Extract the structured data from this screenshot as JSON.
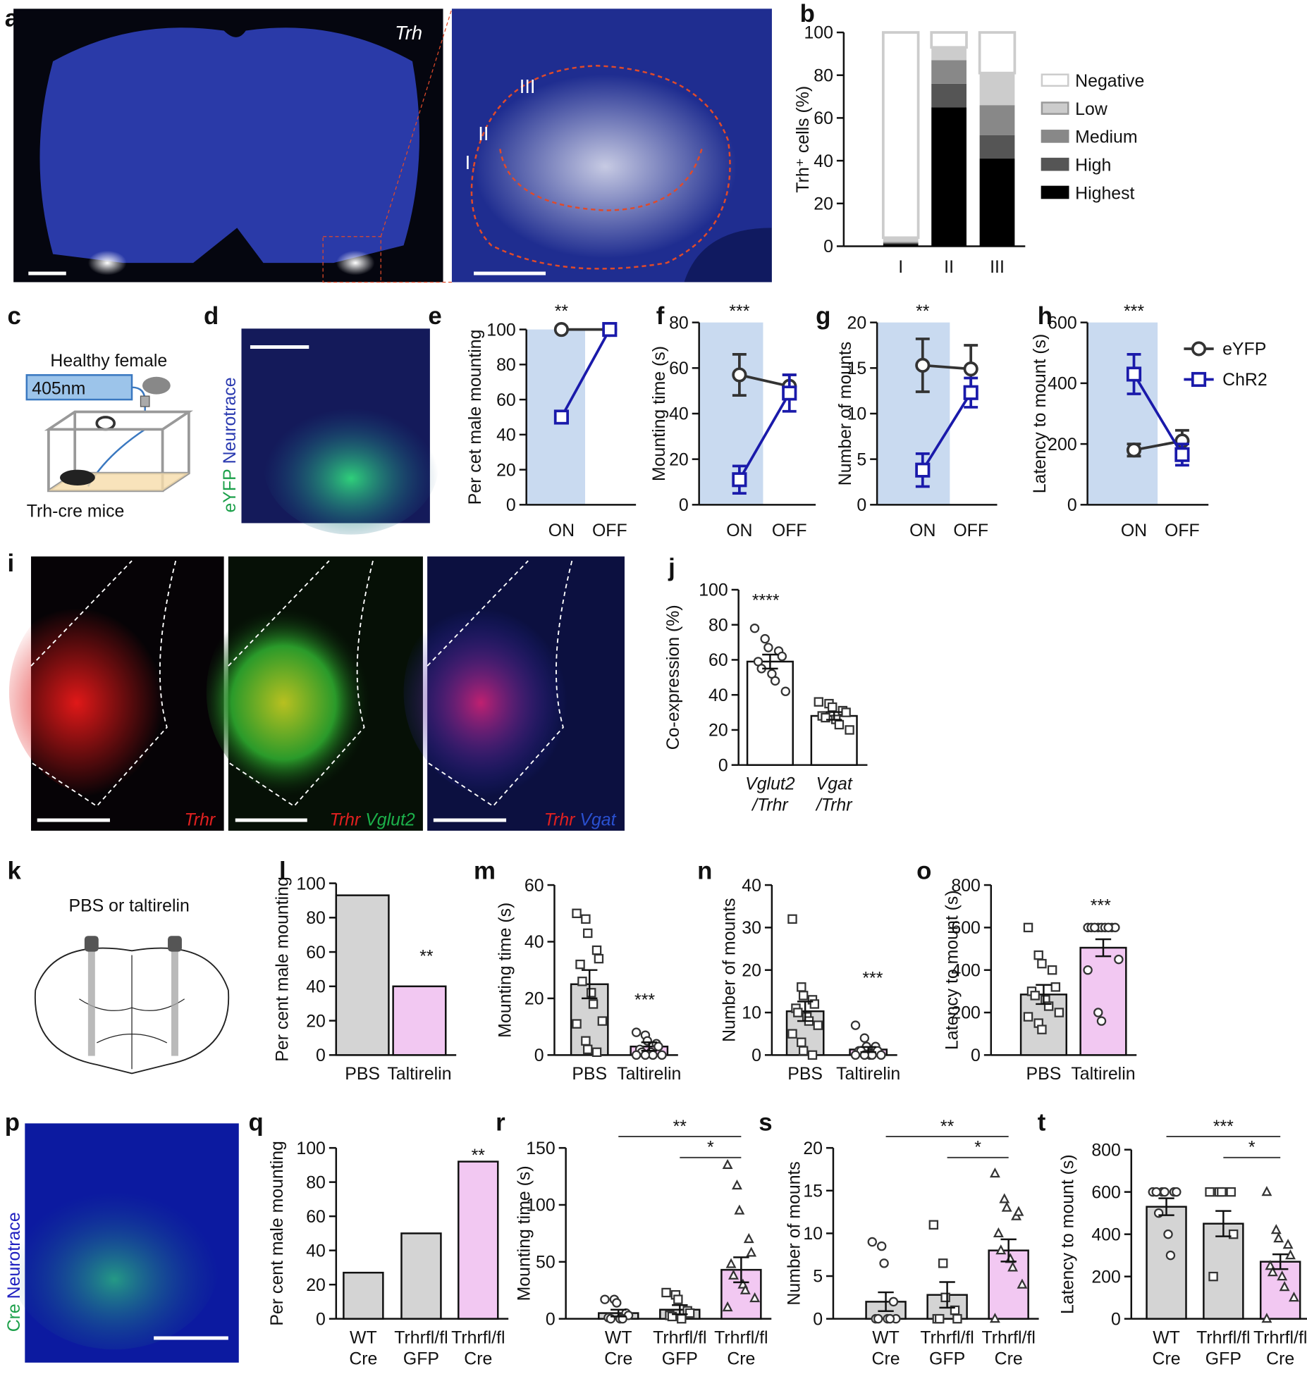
{
  "figures": [
    {
      "panel": "a",
      "label": "Trh",
      "regions": [
        "III",
        "II",
        "I"
      ]
    },
    {
      "panel": "c",
      "texts": [
        "Healthy female",
        "405nm",
        "Trh-cre mice"
      ]
    },
    {
      "panel": "d",
      "stains": [
        "eYFP",
        "Neurotrace"
      ]
    },
    {
      "panel": "i",
      "captions": [
        [
          "Trhr"
        ],
        [
          "Trhr",
          "Vglut2"
        ],
        [
          "Trhr",
          "Vgat"
        ]
      ]
    },
    {
      "panel": "k",
      "text": "PBS or taltirelin"
    },
    {
      "panel": "p",
      "stains": [
        "Cre",
        "Neurotrace"
      ]
    }
  ],
  "chart_data": [
    {
      "panel": "b",
      "type": "stacked_bar",
      "ylabel": "Trh⁺ cells (%)",
      "categories": [
        "I",
        "II",
        "III"
      ],
      "ylim": [
        0,
        100
      ],
      "yticks": [
        0,
        20,
        40,
        60,
        80,
        100
      ],
      "series": [
        {
          "name": "Highest",
          "color": "#000000",
          "values": [
            1,
            65,
            41
          ]
        },
        {
          "name": "High",
          "color": "#555555",
          "values": [
            0.5,
            11,
            11
          ]
        },
        {
          "name": "Medium",
          "color": "#888888",
          "values": [
            0.5,
            11,
            14
          ]
        },
        {
          "name": "Low",
          "color": "#cccccc",
          "values": [
            2,
            6,
            15
          ]
        },
        {
          "name": "Negative",
          "color": "#ffffff",
          "values": [
            96,
            7,
            19
          ]
        }
      ]
    },
    {
      "panel": "e",
      "type": "line",
      "ylabel": "Per cet male mounting",
      "x": [
        "ON",
        "OFF"
      ],
      "shade": "#c9daf0",
      "ylim": [
        0,
        100
      ],
      "yticks": [
        0,
        20,
        40,
        60,
        80,
        100
      ],
      "annotation": "**",
      "series": [
        {
          "color": "#333333",
          "marker": "circle",
          "values": [
            100,
            100
          ]
        },
        {
          "color": "#1a1aaa",
          "marker": "square",
          "values": [
            50,
            100
          ]
        }
      ]
    },
    {
      "panel": "f",
      "type": "line",
      "ylabel": "Mounting time (s)",
      "x": [
        "ON",
        "OFF"
      ],
      "shade": "#c9daf0",
      "ylim": [
        0,
        80
      ],
      "yticks": [
        0,
        20,
        40,
        60,
        80
      ],
      "annotation": "***",
      "series": [
        {
          "color": "#333333",
          "marker": "circle",
          "values": [
            57,
            52
          ],
          "errors": [
            9,
            5
          ]
        },
        {
          "color": "#1a1aaa",
          "marker": "square",
          "values": [
            11,
            49
          ],
          "errors": [
            6,
            8
          ]
        }
      ]
    },
    {
      "panel": "g",
      "type": "line",
      "ylabel": "Number of mounts",
      "x": [
        "ON",
        "OFF"
      ],
      "shade": "#c9daf0",
      "ylim": [
        0,
        20
      ],
      "yticks": [
        0,
        5,
        10,
        15,
        20
      ],
      "annotation": "**",
      "series": [
        {
          "color": "#333333",
          "marker": "circle",
          "values": [
            15.3,
            14.9
          ],
          "errors": [
            2.9,
            2.6
          ]
        },
        {
          "color": "#1a1aaa",
          "marker": "square",
          "values": [
            3.8,
            12.3
          ],
          "errors": [
            1.8,
            1.6
          ]
        }
      ]
    },
    {
      "panel": "h",
      "type": "line",
      "ylabel": "Latency to mount (s)",
      "x": [
        "ON",
        "OFF"
      ],
      "shade": "#c9daf0",
      "ylim": [
        0,
        600
      ],
      "yticks": [
        0,
        200,
        400,
        600
      ],
      "annotation": "***",
      "legend": "right",
      "series": [
        {
          "name": "eYFP",
          "color": "#333333",
          "marker": "circle",
          "values": [
            180,
            210
          ],
          "errors": [
            20,
            35
          ]
        },
        {
          "name": "ChR2",
          "color": "#1a1aaa",
          "marker": "square",
          "values": [
            430,
            165
          ],
          "errors": [
            65,
            35
          ]
        }
      ]
    },
    {
      "panel": "j",
      "type": "bar",
      "ylabel": "Co-expression (%)",
      "categories": [
        [
          "Vglut2",
          "/Trhr"
        ],
        [
          "Vgat",
          "/Trhr"
        ]
      ],
      "values": [
        59,
        28
      ],
      "errors": [
        4,
        2.2
      ],
      "colors": [
        "#ffffff",
        "#ffffff"
      ],
      "markers": [
        "circle",
        "square"
      ],
      "points": [
        [
          78,
          72,
          67,
          65,
          62,
          59,
          55,
          52,
          48,
          42
        ],
        [
          36,
          35,
          33,
          31,
          30,
          28,
          27,
          26,
          23,
          20
        ]
      ],
      "ylim": [
        0,
        100
      ],
      "yticks": [
        0,
        20,
        40,
        60,
        80,
        100
      ],
      "annotation": "****"
    },
    {
      "panel": "l",
      "type": "bar",
      "ylabel": "Per cent male mounting",
      "categories": [
        [
          "PBS"
        ],
        [
          "Taltirelin"
        ]
      ],
      "values": [
        93,
        40
      ],
      "colors": [
        "#d4d4d4",
        "#f2c8f2"
      ],
      "ylim": [
        0,
        100
      ],
      "yticks": [
        0,
        20,
        40,
        60,
        80,
        100
      ],
      "annotation": "**"
    },
    {
      "panel": "m",
      "type": "bar",
      "ylabel": "Mounting time (s)",
      "categories": [
        [
          "PBS"
        ],
        [
          "Taltirelin"
        ]
      ],
      "values": [
        25,
        3
      ],
      "errors": [
        5,
        1.5
      ],
      "colors": [
        "#d4d4d4",
        "#f2c8f2"
      ],
      "markers": [
        "square",
        "circle"
      ],
      "points": [
        [
          50,
          48,
          43,
          37,
          34,
          32,
          26,
          22,
          18,
          12,
          11,
          5,
          2,
          1
        ],
        [
          8,
          7,
          5,
          4,
          3,
          2,
          1,
          1,
          0,
          0,
          0,
          0
        ]
      ],
      "ylim": [
        0,
        60
      ],
      "yticks": [
        0,
        20,
        40,
        60
      ],
      "annotation": "***"
    },
    {
      "panel": "n",
      "type": "bar",
      "ylabel": "Number of mounts",
      "categories": [
        [
          "PBS"
        ],
        [
          "Taltirelin"
        ]
      ],
      "values": [
        10.3,
        1.3
      ],
      "errors": [
        2.3,
        0.6
      ],
      "colors": [
        "#d4d4d4",
        "#f2c8f2"
      ],
      "markers": [
        "square",
        "circle"
      ],
      "points": [
        [
          32,
          16,
          14,
          13,
          12,
          11,
          10,
          9,
          8,
          7,
          5,
          3,
          1,
          0
        ],
        [
          7,
          4,
          2,
          2,
          1,
          1,
          1,
          0,
          0,
          0,
          0,
          0
        ]
      ],
      "ylim": [
        0,
        40
      ],
      "yticks": [
        0,
        10,
        20,
        30,
        40
      ],
      "annotation": "***"
    },
    {
      "panel": "o",
      "type": "bar",
      "ylabel": "Latency to mount (s)",
      "categories": [
        [
          "PBS"
        ],
        [
          "Taltirelin"
        ]
      ],
      "values": [
        285,
        505
      ],
      "errors": [
        45,
        40
      ],
      "colors": [
        "#d4d4d4",
        "#f2c8f2"
      ],
      "markers": [
        "square",
        "circle"
      ],
      "points": [
        [
          600,
          470,
          430,
          400,
          320,
          300,
          280,
          260,
          230,
          200,
          180,
          150,
          120
        ],
        [
          600,
          600,
          600,
          600,
          600,
          600,
          600,
          600,
          600,
          450,
          400,
          200,
          160
        ]
      ],
      "ylim": [
        0,
        800
      ],
      "yticks": [
        0,
        200,
        400,
        600,
        800
      ],
      "annotation": "***"
    },
    {
      "panel": "q",
      "type": "bar",
      "ylabel": "Per cent male mounting",
      "categories": [
        [
          "WT",
          "Cre"
        ],
        [
          "Trhrfl/fl",
          "GFP"
        ],
        [
          "Trhrfl/fl",
          "Cre"
        ]
      ],
      "values": [
        27,
        50,
        92
      ],
      "colors": [
        "#d4d4d4",
        "#d4d4d4",
        "#f2c8f2"
      ],
      "ylim": [
        0,
        100
      ],
      "yticks": [
        0,
        20,
        40,
        60,
        80,
        100
      ],
      "annotation": "**"
    },
    {
      "panel": "r",
      "type": "bar",
      "ylabel": "Mounting time (s)",
      "categories": [
        [
          "WT",
          "Cre"
        ],
        [
          "Trhrfl/fl",
          "GFP"
        ],
        [
          "Trhrfl/fl",
          "Cre"
        ]
      ],
      "values": [
        5,
        8,
        43
      ],
      "errors": [
        3,
        4,
        11
      ],
      "colors": [
        "#d4d4d4",
        "#d4d4d4",
        "#f2c8f2"
      ],
      "markers": [
        "circle",
        "square",
        "triangle"
      ],
      "points": [
        [
          17,
          17,
          14,
          5,
          3,
          1,
          0,
          0,
          0
        ],
        [
          23,
          21,
          17,
          7,
          5,
          3,
          2,
          0
        ],
        [
          135,
          117,
          95,
          70,
          58,
          48,
          38,
          30,
          25,
          18,
          10
        ]
      ],
      "ylim": [
        0,
        150
      ],
      "yticks": [
        0,
        50,
        100,
        150
      ],
      "comparisons": [
        {
          "categories": [
            0,
            2
          ],
          "text": "**"
        },
        {
          "categories": [
            1,
            2
          ],
          "text": "*"
        }
      ]
    },
    {
      "panel": "s",
      "type": "bar",
      "ylabel": "Number of mounts",
      "categories": [
        [
          "WT",
          "Cre"
        ],
        [
          "Trhrfl/fl",
          "GFP"
        ],
        [
          "Trhrfl/fl",
          "Cre"
        ]
      ],
      "values": [
        2,
        2.8,
        8
      ],
      "errors": [
        1.1,
        1.5,
        1.3
      ],
      "colors": [
        "#d4d4d4",
        "#d4d4d4",
        "#f2c8f2"
      ],
      "markers": [
        "circle",
        "square",
        "triangle"
      ],
      "points": [
        [
          9,
          8.5,
          6.5,
          2,
          0,
          0,
          0,
          0,
          0
        ],
        [
          11,
          6.5,
          2.5,
          1,
          0,
          0,
          0
        ],
        [
          17,
          14,
          13,
          12,
          12.5,
          10,
          8,
          7,
          6,
          4,
          0
        ]
      ],
      "ylim": [
        0,
        20
      ],
      "yticks": [
        0,
        5,
        10,
        15,
        20
      ],
      "comparisons": [
        {
          "categories": [
            0,
            2
          ],
          "text": "**"
        },
        {
          "categories": [
            1,
            2
          ],
          "text": "*"
        }
      ]
    },
    {
      "panel": "t",
      "type": "bar",
      "ylabel": "Latency to mount (s)",
      "categories": [
        [
          "WT",
          "Cre"
        ],
        [
          "Trhrfl/fl",
          "GFP"
        ],
        [
          "Trhrfl/fl",
          "Cre"
        ]
      ],
      "values": [
        530,
        450,
        270
      ],
      "errors": [
        40,
        60,
        35
      ],
      "colors": [
        "#d4d4d4",
        "#d4d4d4",
        "#f2c8f2"
      ],
      "markers": [
        "circle",
        "square",
        "triangle"
      ],
      "points": [
        [
          600,
          600,
          600,
          600,
          600,
          600,
          500,
          400,
          300
        ],
        [
          600,
          600,
          600,
          600,
          400,
          200
        ],
        [
          600,
          420,
          380,
          350,
          300,
          250,
          220,
          200,
          150,
          100,
          0
        ]
      ],
      "ylim": [
        0,
        800
      ],
      "yticks": [
        0,
        200,
        400,
        600,
        800
      ],
      "comparisons": [
        {
          "categories": [
            0,
            2
          ],
          "text": "***"
        },
        {
          "categories": [
            1,
            2
          ],
          "text": "*"
        }
      ]
    }
  ]
}
